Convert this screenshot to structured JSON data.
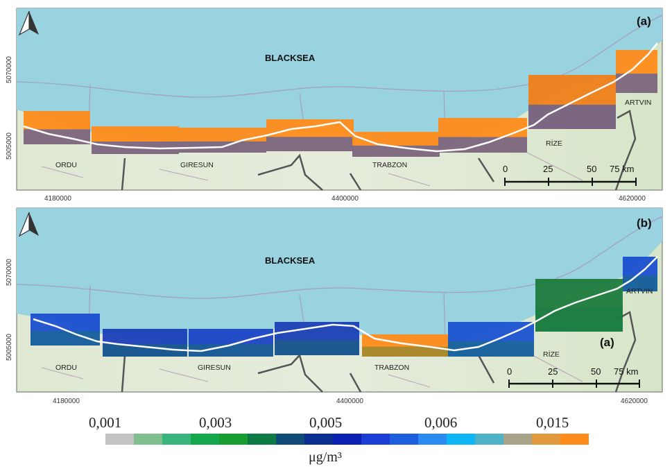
{
  "panels": [
    {
      "id": "a",
      "label": "(a)",
      "sea_label": "BLACKSEA",
      "places": [
        "ORDU",
        "GIRESUN",
        "TRABZON",
        "RİZE",
        "ARTVIN"
      ],
      "y_ticks": [
        "5005000",
        "5070000"
      ],
      "x_ticks": [
        "4180000",
        "4400000",
        "4620000"
      ],
      "scale_labels": [
        "0",
        "25",
        "50",
        "75 km"
      ],
      "segment_colors": [
        "#ff8c1a",
        "#ff8c1a",
        "#ff8c1a",
        "#ff8c1a",
        "#ff8c1a",
        "#ff8c1a",
        "#f07f18"
      ]
    },
    {
      "id": "b",
      "label": "(b)",
      "sea_label": "BLACKSEA",
      "places": [
        "ORDU",
        "GIRESUN",
        "TRABZON",
        "RİZE",
        "ARTVIN"
      ],
      "y_ticks": [
        "5005000",
        "5070000"
      ],
      "x_ticks": [
        "4180000",
        "4400000",
        "4620000"
      ],
      "scale_labels": [
        "0",
        "25",
        "50",
        "75 km"
      ],
      "overlay_label": "(a)",
      "segment_colors": [
        "#1a4fcf",
        "#1b3fb8",
        "#1b44c4",
        "#1a3fb5",
        "#ff8c1a",
        "#1a52d0",
        "#1e7a3c"
      ]
    }
  ],
  "legend": {
    "values": [
      "0,001",
      "0,003",
      "0,005",
      "0,006",
      "0,015"
    ],
    "unit": "μg/m³",
    "colors": [
      "#c3c3c3",
      "#7fbf8f",
      "#38b47c",
      "#14a84c",
      "#179e2f",
      "#0e7a45",
      "#0f4d78",
      "#0d2f8f",
      "#0b1fb3",
      "#1b3fd6",
      "#1e5fe0",
      "#2b8af0",
      "#0fb6f5",
      "#4fb2c6",
      "#a7a48a",
      "#e39a3e",
      "#ff8c1a"
    ]
  }
}
